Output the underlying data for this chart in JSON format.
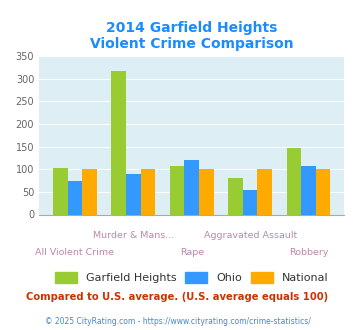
{
  "title_line1": "2014 Garfield Heights",
  "title_line2": "Violent Crime Comparison",
  "categories": [
    "All Violent Crime",
    "Murder & Mans...",
    "Rape",
    "Aggravated Assault",
    "Robbery"
  ],
  "garfield_heights": [
    103,
    318,
    108,
    80,
    147
  ],
  "ohio": [
    75,
    89,
    120,
    55,
    107
  ],
  "national": [
    100,
    100,
    100,
    100,
    100
  ],
  "bar_color_garfield": "#99cc33",
  "bar_color_ohio": "#3399ff",
  "bar_color_national": "#ffaa00",
  "ylim": [
    0,
    350
  ],
  "yticks": [
    0,
    50,
    100,
    150,
    200,
    250,
    300,
    350
  ],
  "title_color": "#1a8cff",
  "plot_bg": "#ddeef5",
  "xlabel_color": "#bb88aa",
  "note_text": "Compared to U.S. average. (U.S. average equals 100)",
  "note_color": "#cc3300",
  "footer_text": "© 2025 CityRating.com - https://www.cityrating.com/crime-statistics/",
  "footer_color": "#4488cc",
  "legend_labels": [
    "Garfield Heights",
    "Ohio",
    "National"
  ],
  "legend_text_color": "#333333"
}
